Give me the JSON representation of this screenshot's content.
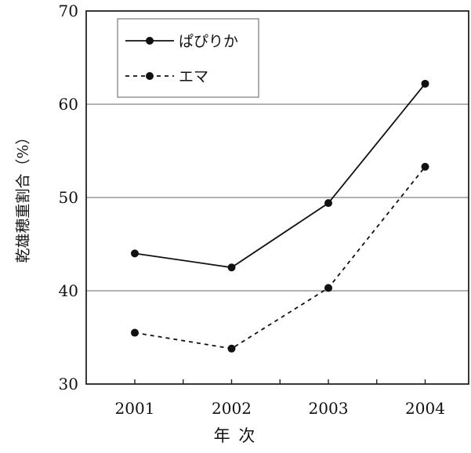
{
  "chart_data": {
    "type": "line",
    "title": "",
    "xlabel": "年 次",
    "ylabel": "乾雄穂重割合（%）",
    "categories": [
      "2001",
      "2002",
      "2003",
      "2004"
    ],
    "ylim": [
      30,
      70
    ],
    "yticks": [
      30,
      40,
      50,
      60,
      70
    ],
    "grid": "horizontal",
    "legend_position": "top-left",
    "series": [
      {
        "name": "ぱぴりか",
        "style": "solid",
        "color": "#111111",
        "values": [
          44.0,
          42.5,
          49.4,
          62.2
        ]
      },
      {
        "name": "エマ",
        "style": "dashed",
        "color": "#111111",
        "values": [
          35.5,
          33.8,
          40.3,
          53.3
        ]
      }
    ]
  }
}
